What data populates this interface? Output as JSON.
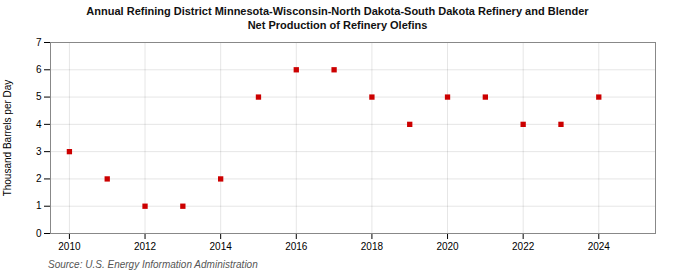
{
  "chart_data": {
    "type": "scatter",
    "title": "Annual Refining District Minnesota-Wisconsin-North Dakota-South Dakota Refinery and Blender",
    "subtitle": "Net Production of Refinery Olefins",
    "ylabel": "Thousand Barrels per Day",
    "source": "Source: U.S. Energy Information Administration",
    "x": [
      2010,
      2011,
      2012,
      2013,
      2014,
      2015,
      2016,
      2017,
      2018,
      2019,
      2020,
      2021,
      2022,
      2023,
      2024
    ],
    "values": [
      3,
      2,
      1,
      1,
      2,
      5,
      6,
      6,
      5,
      4,
      5,
      5,
      4,
      4,
      5
    ],
    "color": "#cc0000",
    "marker": "square",
    "xlim": [
      2009.5,
      2025.5
    ],
    "ylim": [
      0,
      7
    ],
    "xticks": [
      2010,
      2012,
      2014,
      2016,
      2018,
      2020,
      2022,
      2024
    ],
    "yticks": [
      0,
      1,
      2,
      3,
      4,
      5,
      6,
      7
    ],
    "grid": true
  }
}
